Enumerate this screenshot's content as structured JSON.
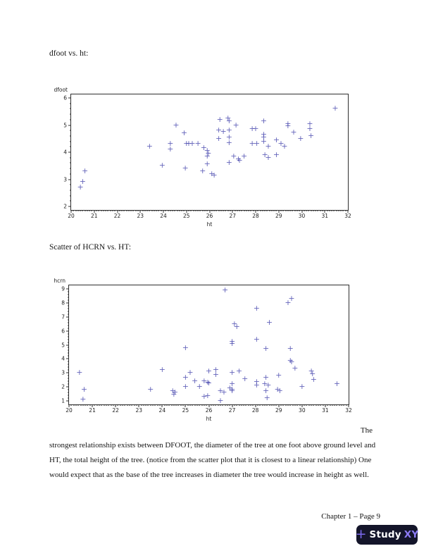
{
  "page": {
    "heading1": "dfoot vs. ht:",
    "heading2": "Scatter of HCRN vs. HT:",
    "paragraph": {
      "line1": "The",
      "line2": "strongest relationship exists between DFOOT, the diameter of the tree at one foot above ground level and",
      "line3": "HT, the total height of the tree. (notice from the scatter plot that it is closest to a linear relationship) One",
      "line4": "would expect that as the base of the tree increases in diameter the tree would increase in height as well."
    },
    "footer_text": "Chapter 1 – Page 9",
    "logo": {
      "plus": "+",
      "brand_primary": "Study",
      "brand_accent": "XY",
      "bg_color": "#14152a",
      "plus_color": "#7b68ee",
      "primary_color": "#ffffff",
      "accent_color": "#8c7bf4"
    }
  },
  "chart_data": [
    {
      "type": "scatter",
      "title": "",
      "xlabel": "ht",
      "ylabel": "dfoot",
      "xlim": [
        20,
        32
      ],
      "ylim": [
        2,
        6
      ],
      "xticks": [
        20,
        21,
        22,
        23,
        24,
        25,
        26,
        27,
        28,
        29,
        30,
        31,
        32
      ],
      "yticks": [
        2,
        3,
        4,
        5,
        6
      ],
      "grid": false,
      "legend": null,
      "marker": "+",
      "marker_color": "rgba(58,58,168,0.78)",
      "points": [
        [
          20.4,
          2.7
        ],
        [
          20.5,
          2.9
        ],
        [
          20.6,
          3.3
        ],
        [
          23.4,
          4.2
        ],
        [
          23.95,
          3.5
        ],
        [
          24.3,
          4.3
        ],
        [
          24.3,
          4.1
        ],
        [
          24.55,
          5.0
        ],
        [
          24.9,
          4.7
        ],
        [
          24.95,
          3.4
        ],
        [
          25.0,
          4.3
        ],
        [
          25.1,
          4.3
        ],
        [
          25.25,
          4.3
        ],
        [
          25.5,
          4.3
        ],
        [
          25.7,
          3.3
        ],
        [
          25.75,
          4.15
        ],
        [
          25.9,
          4.05
        ],
        [
          25.9,
          3.85
        ],
        [
          25.95,
          3.95
        ],
        [
          25.9,
          3.55
        ],
        [
          26.1,
          3.2
        ],
        [
          26.2,
          3.15
        ],
        [
          26.45,
          5.2
        ],
        [
          26.4,
          4.8
        ],
        [
          26.4,
          4.5
        ],
        [
          26.6,
          4.75
        ],
        [
          26.8,
          5.25
        ],
        [
          26.85,
          5.15
        ],
        [
          26.85,
          4.8
        ],
        [
          26.85,
          4.55
        ],
        [
          26.85,
          4.35
        ],
        [
          26.85,
          3.6
        ],
        [
          27.05,
          3.85
        ],
        [
          27.15,
          5.0
        ],
        [
          27.25,
          3.75
        ],
        [
          27.3,
          3.7
        ],
        [
          27.5,
          3.85
        ],
        [
          27.85,
          4.85
        ],
        [
          27.85,
          4.3
        ],
        [
          28.0,
          4.85
        ],
        [
          28.05,
          4.3
        ],
        [
          28.35,
          5.15
        ],
        [
          28.35,
          4.65
        ],
        [
          28.35,
          4.55
        ],
        [
          28.35,
          4.4
        ],
        [
          28.4,
          3.9
        ],
        [
          28.55,
          4.2
        ],
        [
          28.55,
          3.8
        ],
        [
          28.9,
          4.43
        ],
        [
          28.9,
          3.9
        ],
        [
          29.1,
          4.3
        ],
        [
          29.25,
          4.2
        ],
        [
          29.4,
          5.05
        ],
        [
          29.4,
          4.95
        ],
        [
          29.65,
          4.72
        ],
        [
          29.95,
          4.5
        ],
        [
          30.35,
          5.05
        ],
        [
          30.35,
          4.85
        ],
        [
          30.4,
          4.6
        ],
        [
          31.45,
          5.62
        ]
      ]
    },
    {
      "type": "scatter",
      "title": "",
      "xlabel": "ht",
      "ylabel": "hcrn",
      "xlim": [
        20,
        32
      ],
      "ylim": [
        1,
        9
      ],
      "xticks": [
        20,
        21,
        22,
        23,
        24,
        25,
        26,
        27,
        28,
        29,
        30,
        31,
        32
      ],
      "yticks": [
        1,
        2,
        3,
        4,
        5,
        6,
        7,
        8,
        9
      ],
      "grid": false,
      "legend": null,
      "marker": "+",
      "marker_color": "rgba(58,58,168,0.78)",
      "points": [
        [
          20.45,
          3.0
        ],
        [
          20.65,
          1.8
        ],
        [
          20.6,
          1.1
        ],
        [
          23.5,
          1.8
        ],
        [
          24.0,
          3.2
        ],
        [
          24.45,
          1.7
        ],
        [
          24.55,
          1.6
        ],
        [
          24.5,
          1.45
        ],
        [
          25.0,
          4.75
        ],
        [
          25.0,
          2.65
        ],
        [
          25.0,
          2.0
        ],
        [
          25.2,
          3.0
        ],
        [
          25.4,
          2.4
        ],
        [
          25.6,
          2.0
        ],
        [
          25.8,
          2.4
        ],
        [
          25.8,
          1.3
        ],
        [
          25.95,
          2.3
        ],
        [
          25.95,
          1.35
        ],
        [
          26.0,
          2.25
        ],
        [
          26.0,
          3.1
        ],
        [
          26.3,
          3.2
        ],
        [
          26.3,
          2.85
        ],
        [
          26.5,
          1.7
        ],
        [
          26.5,
          1.0
        ],
        [
          26.65,
          1.6
        ],
        [
          26.7,
          8.9
        ],
        [
          26.9,
          1.9
        ],
        [
          27.0,
          5.25
        ],
        [
          27.0,
          5.1
        ],
        [
          27.0,
          2.2
        ],
        [
          27.0,
          1.8
        ],
        [
          27.0,
          1.7
        ],
        [
          27.0,
          3.0
        ],
        [
          27.1,
          6.5
        ],
        [
          27.2,
          6.3
        ],
        [
          27.3,
          3.1
        ],
        [
          27.55,
          2.55
        ],
        [
          28.05,
          7.6
        ],
        [
          28.05,
          5.4
        ],
        [
          28.05,
          2.35
        ],
        [
          28.05,
          2.1
        ],
        [
          28.4,
          2.2
        ],
        [
          28.45,
          4.7
        ],
        [
          28.45,
          2.65
        ],
        [
          28.45,
          1.7
        ],
        [
          28.5,
          1.2
        ],
        [
          28.55,
          2.1
        ],
        [
          28.6,
          6.6
        ],
        [
          29.0,
          2.8
        ],
        [
          28.95,
          1.8
        ],
        [
          29.05,
          1.7
        ],
        [
          29.55,
          8.3
        ],
        [
          29.4,
          8.0
        ],
        [
          29.5,
          4.7
        ],
        [
          29.5,
          3.85
        ],
        [
          29.55,
          3.78
        ],
        [
          29.7,
          3.3
        ],
        [
          30.0,
          2.0
        ],
        [
          30.4,
          3.1
        ],
        [
          30.45,
          2.9
        ],
        [
          30.5,
          2.5
        ],
        [
          31.5,
          2.2
        ]
      ]
    }
  ]
}
